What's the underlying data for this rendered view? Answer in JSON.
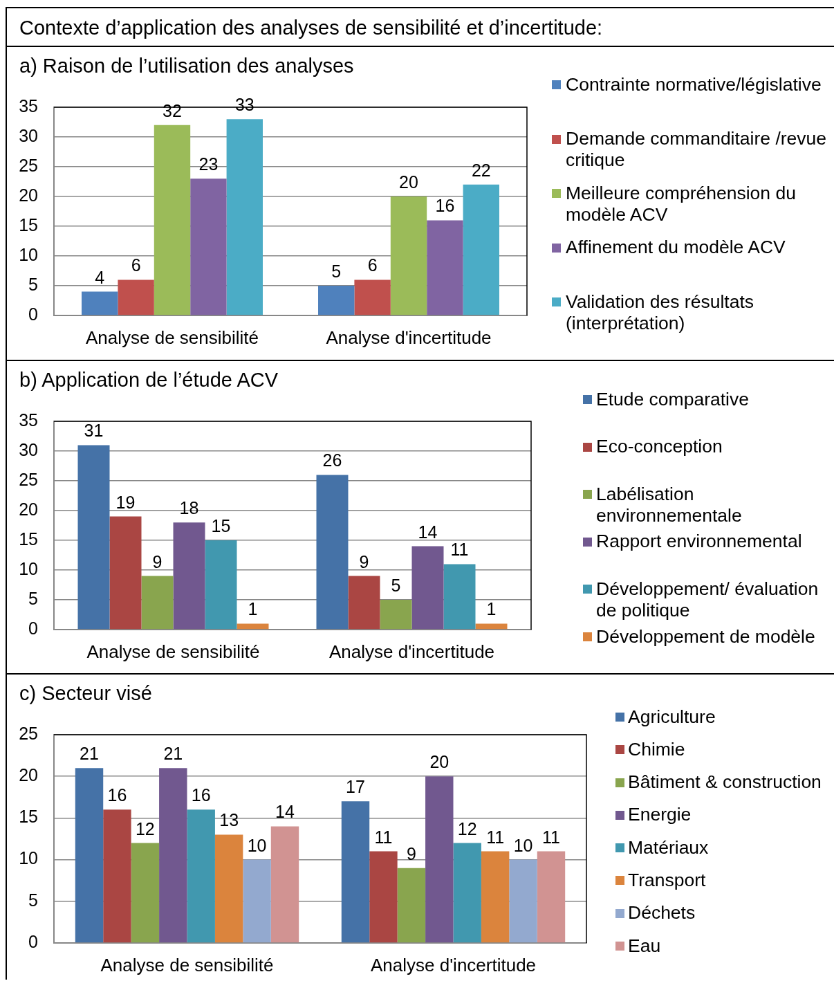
{
  "chart_data": [
    {
      "type": "other",
      "title": "Contexte d’application des analyses de sensibilité et d’incertitude:"
    },
    {
      "type": "bar",
      "title": "a) Raison de l’utilisation des analyses",
      "categories": [
        "Analyse de sensibilité",
        "Analyse d'incertitude"
      ],
      "series": [
        {
          "name": "Contrainte normative/législative",
          "color": "#4f81bd",
          "values": [
            4,
            5
          ]
        },
        {
          "name": "Demande commanditaire /revue critique",
          "color": "#c0504d",
          "values": [
            6,
            6
          ]
        },
        {
          "name": "Meilleure compréhension du modèle ACV",
          "color": "#9bbb59",
          "values": [
            32,
            20
          ]
        },
        {
          "name": "Affinement du modèle ACV",
          "color": "#8064a2",
          "values": [
            23,
            16
          ]
        },
        {
          "name": "Validation des résultats (interprétation)",
          "color": "#4bacc6",
          "values": [
            33,
            22
          ]
        }
      ],
      "ylim": [
        0,
        35
      ],
      "yticks": [
        0,
        5,
        10,
        15,
        20,
        25,
        30,
        35
      ],
      "grid": "y",
      "legend": "right",
      "data_labels": true
    },
    {
      "type": "bar",
      "title": "b) Application de l’étude ACV",
      "categories": [
        "Analyse de sensibilité",
        "Analyse d'incertitude"
      ],
      "series": [
        {
          "name": "Etude comparative",
          "color": "#4572a7",
          "values": [
            31,
            26
          ]
        },
        {
          "name": "Eco-conception",
          "color": "#aa4643",
          "values": [
            19,
            9
          ]
        },
        {
          "name": "Labélisation environnementale",
          "color": "#89a54e",
          "values": [
            9,
            5
          ]
        },
        {
          "name": "Rapport environnemental",
          "color": "#71588f",
          "values": [
            18,
            14
          ]
        },
        {
          "name": "Développement/ évaluation de politique",
          "color": "#4198af",
          "values": [
            15,
            11
          ]
        },
        {
          "name": "Développement de modèle",
          "color": "#db843d",
          "values": [
            1,
            1
          ]
        }
      ],
      "ylim": [
        0,
        35
      ],
      "yticks": [
        0,
        5,
        10,
        15,
        20,
        25,
        30,
        35
      ],
      "grid": "y",
      "legend": "right",
      "data_labels": true
    },
    {
      "type": "bar",
      "title": "c) Secteur visé",
      "categories": [
        "Analyse de sensibilité",
        "Analyse d'incertitude"
      ],
      "series": [
        {
          "name": "Agriculture",
          "color": "#4572a7",
          "values": [
            21,
            17
          ]
        },
        {
          "name": "Chimie",
          "color": "#aa4643",
          "values": [
            16,
            11
          ]
        },
        {
          "name": "Bâtiment & construction",
          "color": "#89a54e",
          "values": [
            12,
            9
          ]
        },
        {
          "name": "Energie",
          "color": "#71588f",
          "values": [
            21,
            20
          ]
        },
        {
          "name": "Matériaux",
          "color": "#4198af",
          "values": [
            16,
            12
          ]
        },
        {
          "name": "Transport",
          "color": "#db843d",
          "values": [
            13,
            11
          ]
        },
        {
          "name": "Déchets",
          "color": "#93a9cf",
          "values": [
            10,
            10
          ]
        },
        {
          "name": "Eau",
          "color": "#d19392",
          "values": [
            14,
            11
          ]
        }
      ],
      "ylim": [
        0,
        25
      ],
      "yticks": [
        0,
        5,
        10,
        15,
        20,
        25
      ],
      "grid": "y",
      "legend": "right",
      "data_labels": true
    }
  ]
}
